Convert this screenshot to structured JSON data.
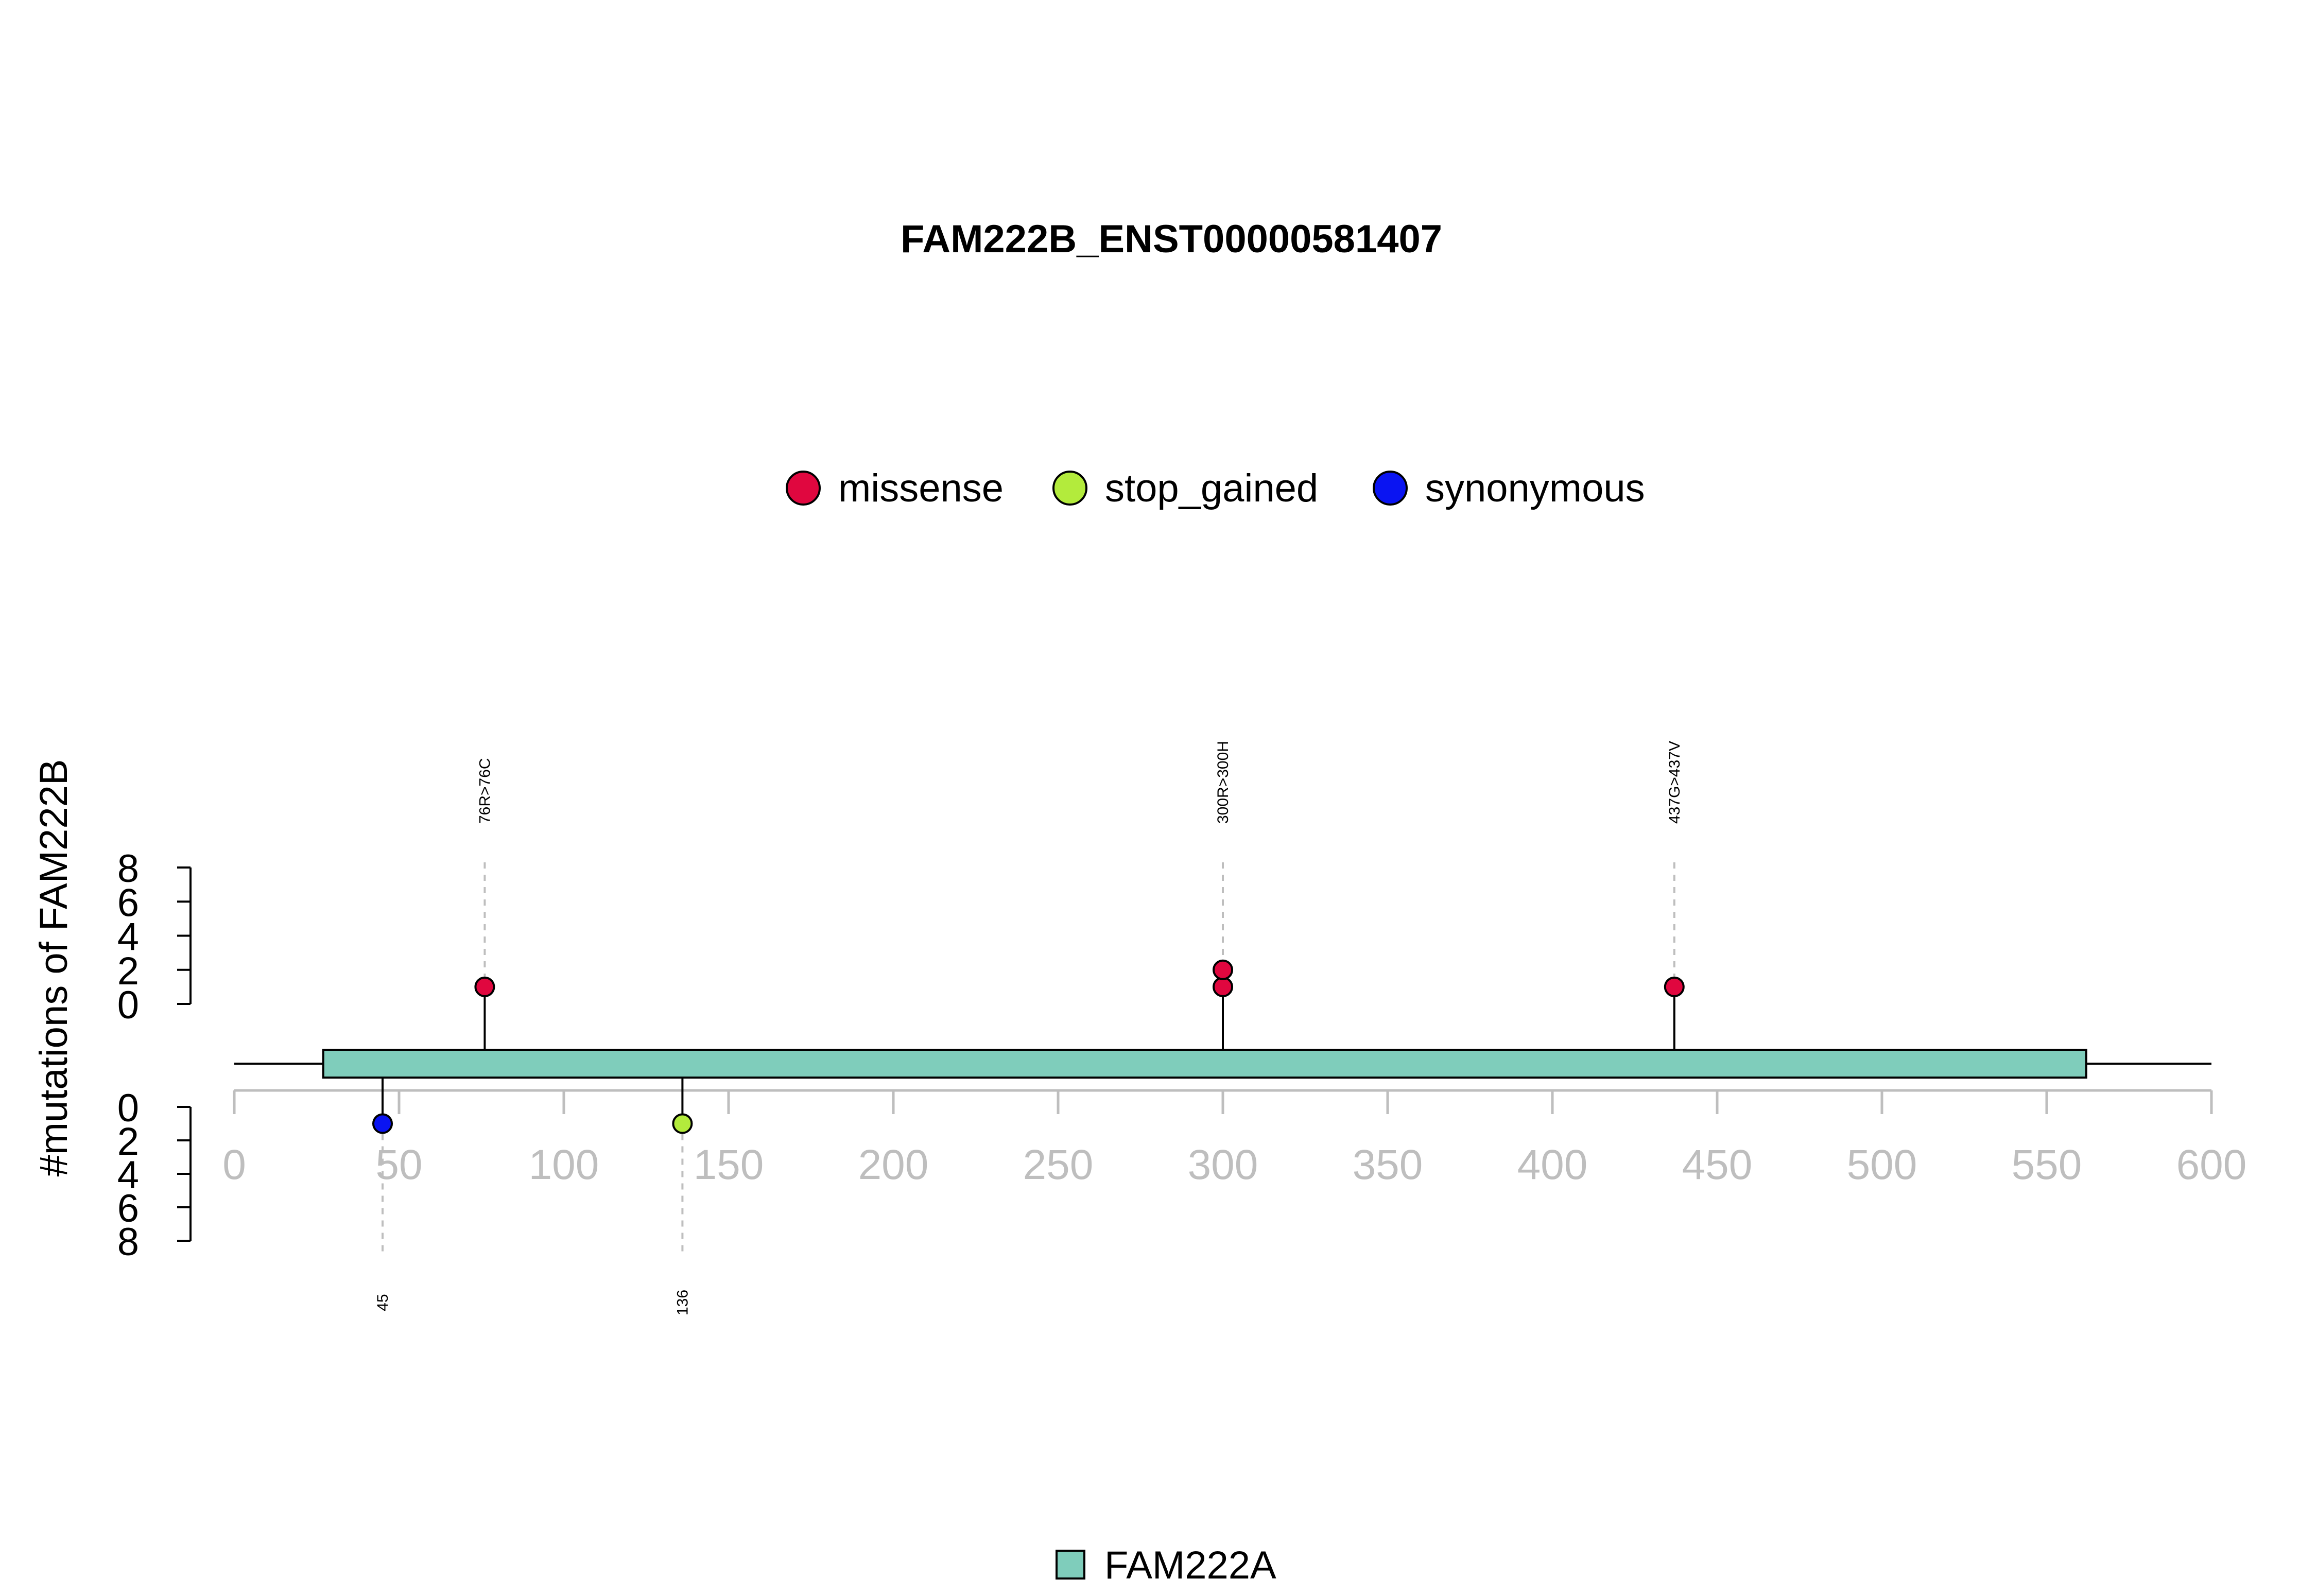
{
  "chart_data": {
    "type": "lollipop",
    "title": "FAM222B_ENST00000581407",
    "ylabel": "#mutations of FAM222B",
    "xlim": [
      0,
      600
    ],
    "x_ticks": [
      0,
      50,
      100,
      150,
      200,
      250,
      300,
      350,
      400,
      450,
      500,
      550,
      600
    ],
    "y_ticks_upper": [
      0,
      2,
      4,
      6,
      8
    ],
    "y_ticks_lower": [
      0,
      2,
      4,
      6,
      8
    ],
    "ylim": [
      0,
      8
    ],
    "legend": [
      {
        "label": "missense",
        "color": "#E0073F"
      },
      {
        "label": "stop_gained",
        "color": "#B3EB3C"
      },
      {
        "label": "synonymous",
        "color": "#0A14F2"
      }
    ],
    "upper_mutations": [
      {
        "position": 76,
        "label": "76R>76C",
        "type": "missense",
        "count": 1
      },
      {
        "position": 300,
        "label": "300R>300H",
        "type": "missense",
        "count": 2
      },
      {
        "position": 437,
        "label": "437G>437V",
        "type": "missense",
        "count": 1
      }
    ],
    "lower_mutations": [
      {
        "position": 45,
        "label": "45",
        "type": "synonymous",
        "count": 1
      },
      {
        "position": 136,
        "label": "136",
        "type": "stop_gained",
        "count": 1
      }
    ],
    "domains": [
      {
        "name": "FAM222A",
        "start": 27,
        "end": 562,
        "color": "#7FCDBB"
      }
    ]
  }
}
